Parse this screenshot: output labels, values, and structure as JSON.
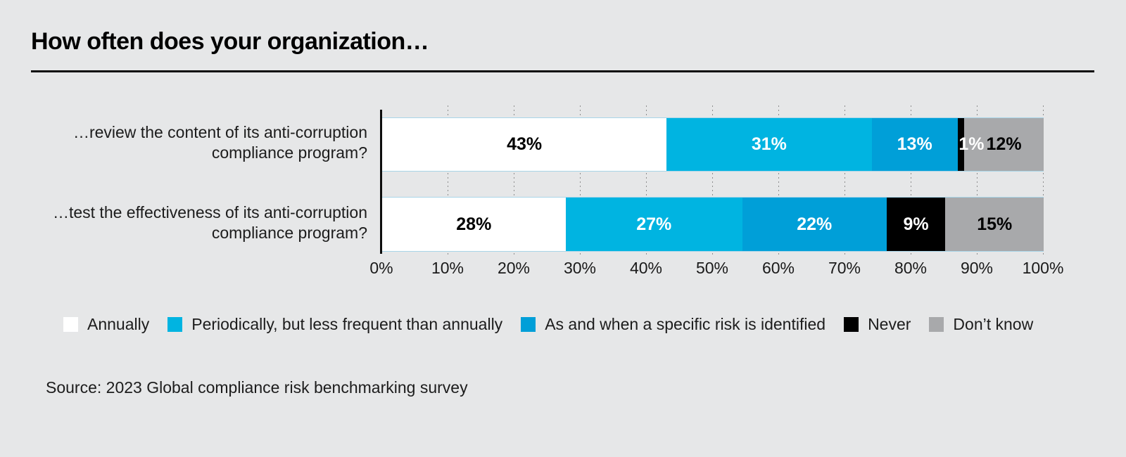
{
  "page": {
    "title": "How often does your organization…",
    "source": "Source: 2023 Global compliance risk benchmarking survey",
    "background_color": "#e6e7e8"
  },
  "chart_data": {
    "type": "bar",
    "stacked": true,
    "orientation": "horizontal",
    "title": "How often does your organization…",
    "categories": [
      "…review the content of its anti-corruption compliance program?",
      "…test the effectiveness of its anti-corruption compliance program?"
    ],
    "series": [
      {
        "name": "Annually",
        "color": "#ffffff",
        "label_color": "#000000",
        "values": [
          43,
          28
        ],
        "labels": [
          "43%",
          "28%"
        ]
      },
      {
        "name": "Periodically, but less frequent than annually",
        "color": "#00b4e1",
        "label_color": "#ffffff",
        "values": [
          31,
          27
        ],
        "labels": [
          "31%",
          "27%"
        ]
      },
      {
        "name": "As and when a specific risk is identified",
        "color": "#009fd8",
        "label_color": "#ffffff",
        "values": [
          13,
          22
        ],
        "labels": [
          "13%",
          "22%"
        ]
      },
      {
        "name": "Never",
        "color": "#000000",
        "label_color": "#ffffff",
        "values": [
          1,
          9
        ],
        "labels": [
          "1%",
          "9%"
        ]
      },
      {
        "name": "Don’t know",
        "color": "#a8a9ab",
        "label_color": "#000000",
        "values": [
          12,
          15
        ],
        "labels": [
          "12%",
          "15%"
        ]
      }
    ],
    "x_ticks": [
      "0%",
      "10%",
      "20%",
      "30%",
      "40%",
      "50%",
      "60%",
      "70%",
      "80%",
      "90%",
      "100%"
    ],
    "xlim": [
      0,
      100
    ],
    "grid": {
      "vertical": "dotted",
      "interval_percent": 10
    },
    "legend_position": "bottom",
    "axis_color": "#0d0d0d",
    "row_border_color": "#a9d5e8",
    "gridline_color": "#8d8d8d"
  }
}
